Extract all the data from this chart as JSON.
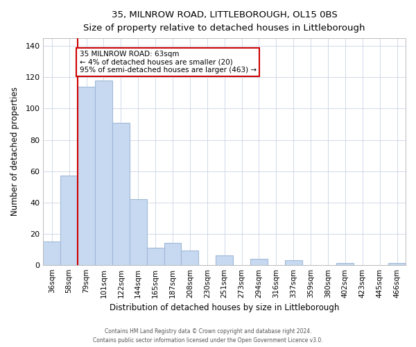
{
  "title": "35, MILNROW ROAD, LITTLEBOROUGH, OL15 0BS",
  "subtitle": "Size of property relative to detached houses in Littleborough",
  "xlabel": "Distribution of detached houses by size in Littleborough",
  "ylabel": "Number of detached properties",
  "categories": [
    "36sqm",
    "58sqm",
    "79sqm",
    "101sqm",
    "122sqm",
    "144sqm",
    "165sqm",
    "187sqm",
    "208sqm",
    "230sqm",
    "251sqm",
    "273sqm",
    "294sqm",
    "316sqm",
    "337sqm",
    "359sqm",
    "380sqm",
    "402sqm",
    "423sqm",
    "445sqm",
    "466sqm"
  ],
  "values": [
    15,
    57,
    114,
    118,
    91,
    42,
    11,
    14,
    9,
    0,
    6,
    0,
    4,
    0,
    3,
    0,
    0,
    1,
    0,
    0,
    1
  ],
  "bar_color": "#c6d9f0",
  "bar_edge_color": "#a0b8d8",
  "property_line_color": "#cc0000",
  "property_line_x": 1.5,
  "ylim": [
    0,
    145
  ],
  "yticks": [
    0,
    20,
    40,
    60,
    80,
    100,
    120,
    140
  ],
  "annotation_line1": "35 MILNROW ROAD: 63sqm",
  "annotation_line2": "← 4% of detached houses are smaller (20)",
  "annotation_line3": "95% of semi-detached houses are larger (463) →",
  "annotation_box_color": "#ffffff",
  "annotation_box_edge": "#cc0000",
  "footer_line1": "Contains HM Land Registry data © Crown copyright and database right 2024.",
  "footer_line2": "Contains public sector information licensed under the Open Government Licence v3.0.",
  "background_color": "#ffffff",
  "grid_color": "#d0d8e8"
}
